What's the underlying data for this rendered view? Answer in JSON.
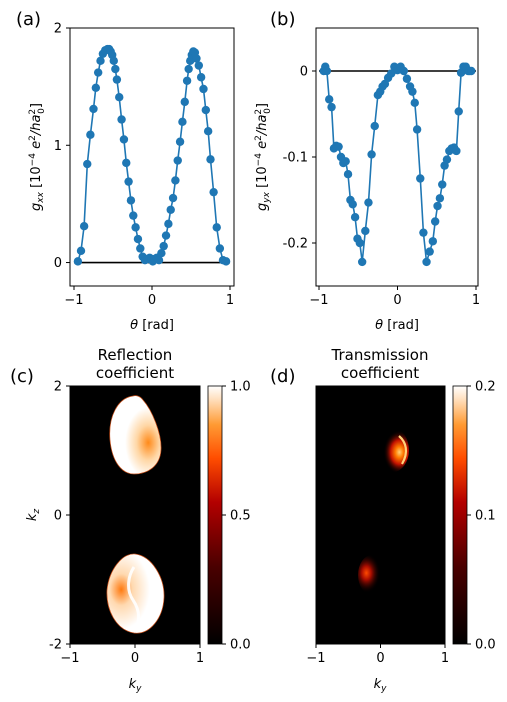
{
  "chart_data": [
    {
      "panel": "(a)",
      "type": "line",
      "xlabel": "θ [rad]",
      "ylabel": "g_xx [10^-4 e^2/ha_0^2]",
      "ylabel_parts": {
        "main": "g",
        "sub": "xx",
        "mid": " [10",
        "exp": "−4",
        "tail1": " e",
        "exp2": "2",
        "tail2": "/ha",
        "exp3": "2",
        "sub3": "0",
        "close": "]"
      },
      "xlabel_parts": {
        "sym": "θ",
        "unit": " [rad]"
      },
      "xlim": [
        -1,
        1
      ],
      "ylim": [
        -0.2,
        2
      ],
      "xticks": [
        "−1",
        "0",
        "1"
      ],
      "xtick_values": [
        -1,
        0,
        1
      ],
      "yticks": [
        "0",
        "1",
        "2"
      ],
      "ytick_values": [
        0,
        1,
        2
      ],
      "color": "#1f77b4",
      "hline": 0,
      "x": [
        -0.95,
        -0.91,
        -0.87,
        -0.83,
        -0.79,
        -0.75,
        -0.72,
        -0.69,
        -0.66,
        -0.63,
        -0.6,
        -0.57,
        -0.55,
        -0.53,
        -0.51,
        -0.49,
        -0.47,
        -0.45,
        -0.42,
        -0.39,
        -0.36,
        -0.33,
        -0.3,
        -0.27,
        -0.24,
        -0.21,
        -0.18,
        -0.15,
        -0.12,
        -0.09,
        -0.06,
        -0.03,
        -0.01,
        0.01,
        0.03,
        0.06,
        0.09,
        0.12,
        0.15,
        0.18,
        0.21,
        0.24,
        0.27,
        0.3,
        0.33,
        0.36,
        0.39,
        0.42,
        0.45,
        0.47,
        0.49,
        0.51,
        0.53,
        0.55,
        0.57,
        0.6,
        0.63,
        0.66,
        0.69,
        0.72,
        0.75,
        0.79,
        0.83,
        0.87,
        0.91,
        0.95
      ],
      "y": [
        0.01,
        0.1,
        0.31,
        0.84,
        1.09,
        1.31,
        1.49,
        1.62,
        1.72,
        1.78,
        1.81,
        1.82,
        1.82,
        1.8,
        1.77,
        1.72,
        1.65,
        1.56,
        1.41,
        1.22,
        1.05,
        0.85,
        0.69,
        0.53,
        0.4,
        0.3,
        0.2,
        0.12,
        0.05,
        0.02,
        0.03,
        0.04,
        0.03,
        0.01,
        0.03,
        0.04,
        0.02,
        0.08,
        0.14,
        0.23,
        0.33,
        0.45,
        0.55,
        0.7,
        0.87,
        1.03,
        1.2,
        1.37,
        1.55,
        1.65,
        1.72,
        1.77,
        1.8,
        1.79,
        1.74,
        1.68,
        1.58,
        1.48,
        1.3,
        1.12,
        0.88,
        0.6,
        0.3,
        0.12,
        0.02,
        0.01
      ]
    },
    {
      "panel": "(b)",
      "type": "line",
      "xlabel": "θ [rad]",
      "ylabel": "g_yx [10^-4 e^2/ha_0^2]",
      "ylabel_parts": {
        "main": "g",
        "sub": "yx",
        "mid": " [10",
        "exp": "−4",
        "tail1": " e",
        "exp2": "2",
        "tail2": "/ha",
        "exp3": "2",
        "sub3": "0",
        "close": "]"
      },
      "xlabel_parts": {
        "sym": "θ",
        "unit": " [rad]"
      },
      "xlim": [
        -1,
        1
      ],
      "ylim": [
        -0.25,
        0.05
      ],
      "xticks": [
        "−1",
        "0",
        "1"
      ],
      "xtick_values": [
        -1,
        0,
        1
      ],
      "yticks": [
        "0",
        "-0.1",
        "-0.2"
      ],
      "ytick_values": [
        0,
        -0.1,
        -0.2
      ],
      "color": "#1f77b4",
      "hline": 0,
      "x": [
        -0.94,
        -0.92,
        -0.9,
        -0.87,
        -0.84,
        -0.81,
        -0.78,
        -0.75,
        -0.72,
        -0.69,
        -0.66,
        -0.63,
        -0.6,
        -0.57,
        -0.54,
        -0.51,
        -0.48,
        -0.45,
        -0.41,
        -0.37,
        -0.33,
        -0.29,
        -0.25,
        -0.22,
        -0.19,
        -0.16,
        -0.12,
        -0.08,
        -0.04,
        0.0,
        0.04,
        0.08,
        0.12,
        0.16,
        0.19,
        0.22,
        0.25,
        0.29,
        0.33,
        0.37,
        0.41,
        0.45,
        0.48,
        0.51,
        0.54,
        0.57,
        0.6,
        0.63,
        0.66,
        0.69,
        0.72,
        0.75,
        0.78,
        0.81,
        0.84,
        0.87,
        0.9,
        0.92,
        0.94
      ],
      "y": [
        0.0,
        0.005,
        0.0,
        -0.033,
        -0.042,
        -0.09,
        -0.087,
        -0.088,
        -0.1,
        -0.107,
        -0.105,
        -0.12,
        -0.15,
        -0.155,
        -0.17,
        -0.195,
        -0.2,
        -0.222,
        -0.186,
        -0.153,
        -0.097,
        -0.064,
        -0.028,
        -0.024,
        -0.018,
        -0.015,
        -0.008,
        -0.003,
        0.005,
        0.001,
        0.005,
        0.0,
        -0.009,
        -0.018,
        -0.024,
        -0.037,
        -0.068,
        -0.125,
        -0.188,
        -0.222,
        -0.21,
        -0.198,
        -0.175,
        -0.157,
        -0.148,
        -0.132,
        -0.11,
        -0.103,
        -0.093,
        -0.09,
        -0.089,
        -0.093,
        -0.047,
        -0.002,
        0.005,
        0.005,
        0.0,
        0.0,
        0.0
      ]
    },
    {
      "panel": "(c)",
      "type": "heatmap",
      "title": "Reflection\ncoefficient",
      "title_lines": [
        "Reflection",
        "coefficient"
      ],
      "xlabel": "k_y",
      "ylabel": "k_z",
      "xlim": [
        -1,
        1
      ],
      "ylim": [
        -2,
        2
      ],
      "xticks": [
        "−1",
        "0",
        "1"
      ],
      "xtick_values": [
        -1,
        0,
        1
      ],
      "yticks": [
        "2",
        "0",
        "-2"
      ],
      "ytick_values": [
        2,
        0,
        -2
      ],
      "colorbar": {
        "range": [
          0.0,
          1.0
        ],
        "ticks": [
          "1.0",
          "0.5",
          "0.0"
        ],
        "tick_values": [
          1.0,
          0.5,
          0.0
        ],
        "colormap": "gist_heat"
      }
    },
    {
      "panel": "(d)",
      "type": "heatmap",
      "title": "Transmission\ncoefficient",
      "title_lines": [
        "Transmission",
        "coefficient"
      ],
      "xlabel": "k_y",
      "xlim": [
        -1,
        1
      ],
      "ylim": [
        -2,
        2
      ],
      "xticks": [
        "−1",
        "0",
        "1"
      ],
      "xtick_values": [
        -1,
        0,
        1
      ],
      "colorbar": {
        "range": [
          0.0,
          0.2
        ],
        "ticks": [
          "0.2",
          "0.1",
          "0.0"
        ],
        "tick_values": [
          0.2,
          0.1,
          0.0
        ],
        "colormap": "gist_heat"
      }
    }
  ]
}
